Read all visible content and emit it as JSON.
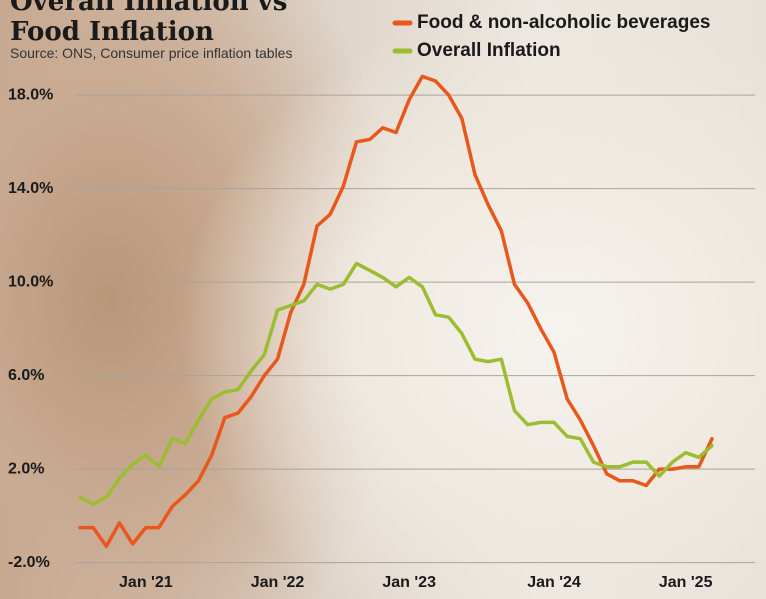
{
  "chart_data": {
    "type": "line",
    "title": "Overall Inflation vs Food Inflation",
    "subtitle": "Source: ONS, Consumer price inflation tables",
    "categories": [
      null,
      null,
      null,
      null,
      null,
      "Jan '21",
      null,
      null,
      null,
      null,
      null,
      null,
      null,
      null,
      null,
      "Jan '22",
      null,
      null,
      null,
      null,
      null,
      null,
      null,
      null,
      null,
      "Jan '23",
      null,
      null,
      null,
      null,
      null,
      null,
      null,
      null,
      null,
      null,
      "Jan '24",
      null,
      null,
      null,
      null,
      null,
      null,
      null,
      null,
      null,
      "Jan '25",
      null,
      null
    ],
    "series": [
      {
        "name": "Food & non-alcoholic beverages",
        "color": "#e8571c",
        "values": [
          -0.5,
          -0.5,
          -1.3,
          -0.3,
          -1.2,
          -0.5,
          -0.5,
          0.4,
          0.9,
          1.5,
          2.6,
          4.2,
          4.4,
          5.1,
          6.0,
          6.7,
          8.7,
          9.9,
          12.4,
          12.9,
          14.1,
          16.0,
          16.1,
          16.6,
          16.4,
          17.8,
          18.8,
          18.6,
          18.0,
          17.0,
          14.6,
          13.3,
          12.2,
          9.9,
          9.1,
          8.0,
          7.0,
          5.0,
          4.1,
          3.0,
          1.8,
          1.5,
          1.5,
          1.3,
          2.0,
          2.0,
          2.1,
          2.1,
          3.3
        ]
      },
      {
        "name": "Overall Inflation",
        "color": "#9bbd2f",
        "values": [
          0.8,
          0.5,
          0.8,
          1.6,
          2.2,
          2.6,
          2.1,
          3.3,
          3.1,
          4.1,
          5.0,
          5.3,
          5.4,
          6.2,
          6.9,
          8.8,
          9.0,
          9.2,
          9.9,
          9.7,
          9.9,
          10.8,
          10.5,
          10.2,
          9.8,
          10.2,
          9.8,
          8.6,
          8.5,
          7.8,
          6.7,
          6.6,
          6.7,
          4.5,
          3.9,
          4.0,
          4.0,
          3.4,
          3.3,
          2.3,
          2.1,
          2.1,
          2.3,
          2.3,
          1.7,
          2.3,
          2.7,
          2.5,
          3.0
        ]
      }
    ],
    "ylim": [
      -3,
      19.5
    ],
    "yticks": [
      {
        "value": -2,
        "label": "-2.0%"
      },
      {
        "value": 2,
        "label": "2.0%"
      },
      {
        "value": 6,
        "label": "6.0%"
      },
      {
        "value": 10,
        "label": "10.0%"
      },
      {
        "value": 14,
        "label": "14.0%"
      },
      {
        "value": 18,
        "label": "18.0%"
      }
    ],
    "grid": true
  }
}
